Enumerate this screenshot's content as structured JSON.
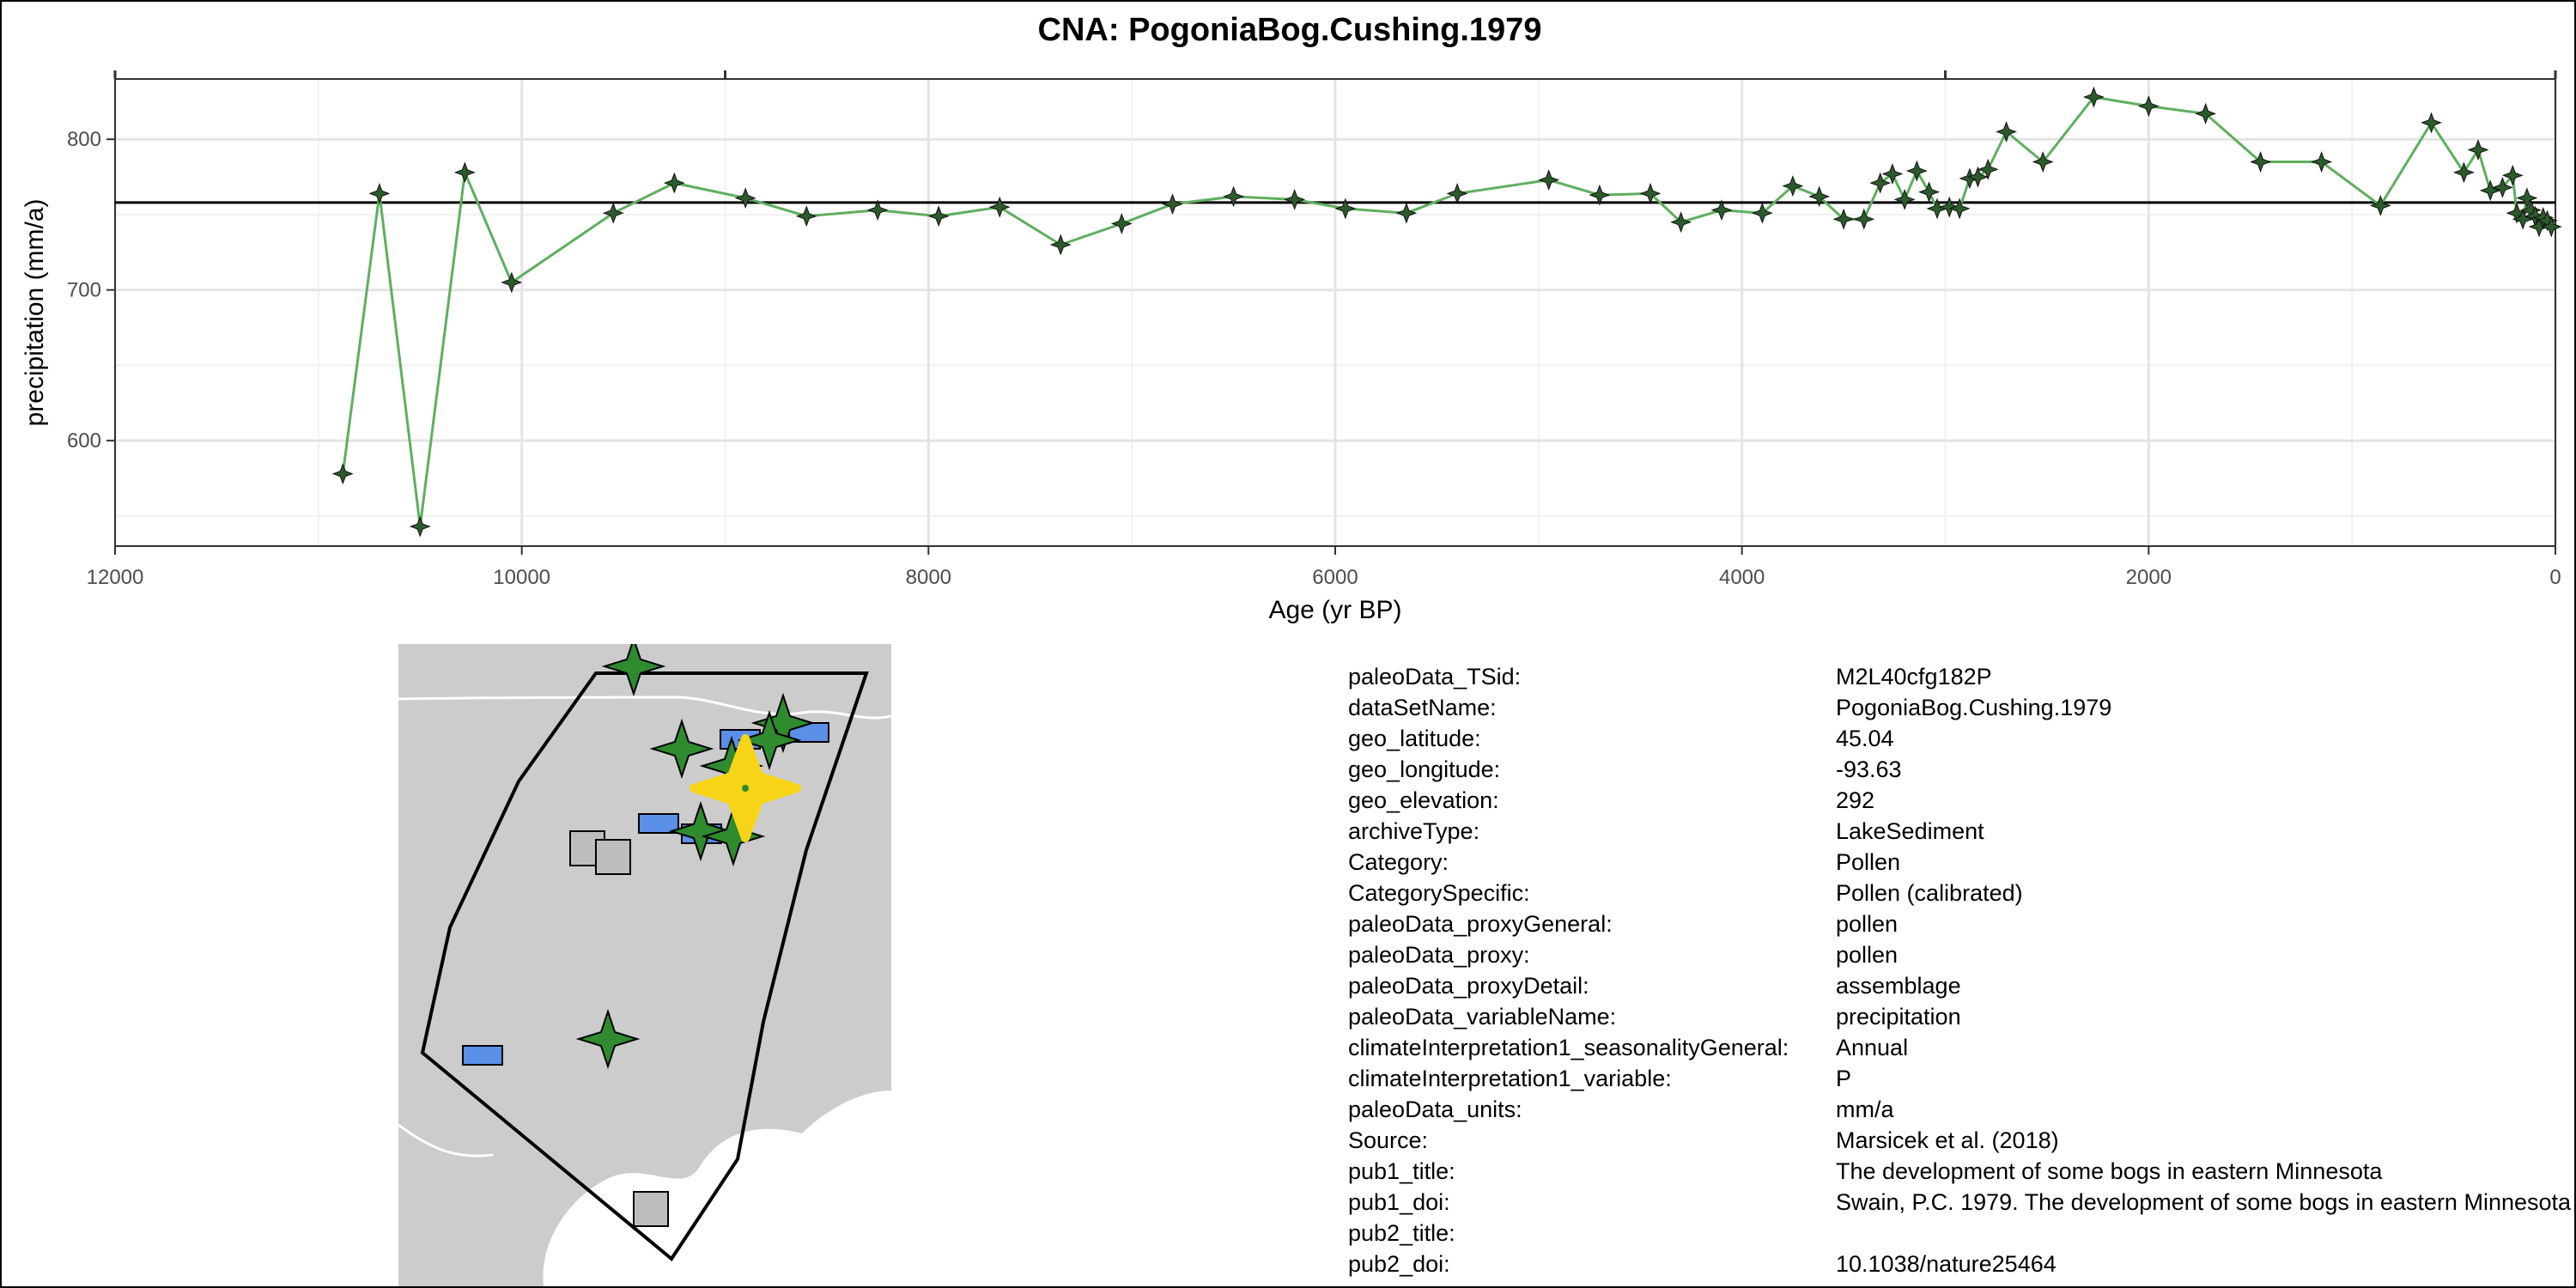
{
  "chart_data": {
    "type": "line",
    "title": "CNA: PogoniaBog.Cushing.1979",
    "xlabel": "Age (yr BP)",
    "ylabel": "precipitation (mm/a)",
    "xlim": [
      12000,
      0
    ],
    "ylim": [
      530,
      840
    ],
    "x_reversed": true,
    "xticks": [
      12000,
      10000,
      8000,
      6000,
      4000,
      2000,
      0
    ],
    "yticks": [
      600,
      700,
      800
    ],
    "mean_line": 758,
    "series": [
      {
        "color": "#5fae5f",
        "marker_color": "#2d5a2d",
        "x": [
          10880,
          10700,
          10500,
          10280,
          10050,
          9550,
          9250,
          8900,
          8600,
          8250,
          7950,
          7650,
          7350,
          7050,
          6800,
          6500,
          6200,
          5950,
          5650,
          5400,
          4950,
          4700,
          4450,
          4300,
          4100,
          3900,
          3750,
          3620,
          3500,
          3400,
          3320,
          3260,
          3200,
          3140,
          3080,
          3040,
          2980,
          2930,
          2880,
          2840,
          2790,
          2700,
          2520,
          2270,
          2000,
          1720,
          1450,
          1150,
          860,
          610,
          450,
          380,
          320,
          260,
          210,
          190,
          160,
          140,
          120,
          100,
          80,
          60,
          40,
          20
        ],
        "y": [
          578,
          764,
          543,
          778,
          705,
          751,
          771,
          761,
          749,
          753,
          749,
          755,
          730,
          744,
          757,
          762,
          760,
          754,
          751,
          764,
          773,
          763,
          764,
          745,
          753,
          751,
          769,
          762,
          747,
          747,
          771,
          777,
          760,
          779,
          765,
          754,
          755,
          754,
          774,
          775,
          780,
          805,
          785,
          828,
          822,
          817,
          785,
          785,
          756,
          811,
          778,
          793,
          766,
          768,
          776,
          751,
          747,
          761,
          753,
          749,
          742,
          748,
          746,
          742
        ]
      }
    ],
    "grid": true,
    "legend": "none"
  },
  "map": {
    "colors": {
      "land": "#cccccc",
      "border": "#ffffff",
      "region": "#000000",
      "star": "#2e8b2e",
      "rect": "#5b8fe8",
      "square": "#bdbdbd",
      "highlight": "#f7d417"
    },
    "icons": [
      "star-marker",
      "rect-marker",
      "square-marker",
      "highlight-star"
    ]
  },
  "metadata": [
    {
      "key": "paleoData_TSid:",
      "value": "M2L40cfg182P"
    },
    {
      "key": "dataSetName:",
      "value": "PogoniaBog.Cushing.1979"
    },
    {
      "key": "geo_latitude:",
      "value": "45.04"
    },
    {
      "key": "geo_longitude:",
      "value": "-93.63"
    },
    {
      "key": "geo_elevation:",
      "value": "292"
    },
    {
      "key": "archiveType:",
      "value": "LakeSediment"
    },
    {
      "key": "Category:",
      "value": "Pollen"
    },
    {
      "key": "CategorySpecific:",
      "value": "Pollen (calibrated)"
    },
    {
      "key": "paleoData_proxyGeneral:",
      "value": "pollen"
    },
    {
      "key": "paleoData_proxy:",
      "value": "pollen"
    },
    {
      "key": "paleoData_proxyDetail:",
      "value": "assemblage"
    },
    {
      "key": "paleoData_variableName:",
      "value": "precipitation"
    },
    {
      "key": "climateInterpretation1_seasonalityGeneral:",
      "value": "Annual"
    },
    {
      "key": "climateInterpretation1_variable:",
      "value": "P"
    },
    {
      "key": "paleoData_units:",
      "value": "mm/a"
    },
    {
      "key": "Source:",
      "value": "Marsicek et al. (2018)"
    },
    {
      "key": "pub1_title:",
      "value": "The development of some bogs in eastern Minnesota"
    },
    {
      "key": "pub1_doi:",
      "value": "Swain, P.C. 1979. The development of some bogs in eastern Minnesota"
    },
    {
      "key": "pub2_title:",
      "value": ""
    },
    {
      "key": "pub2_doi:",
      "value": "10.1038/nature25464"
    }
  ]
}
